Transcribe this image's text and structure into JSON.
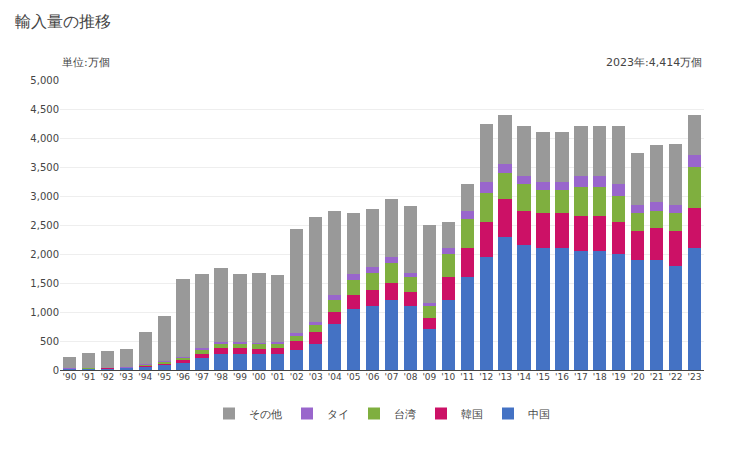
{
  "chart_data": {
    "type": "bar",
    "stacked": true,
    "title": "輸入量の推移",
    "subtitle": "単位:万個",
    "annotation": "2023年:4,414万個",
    "categories": [
      "'90",
      "'91",
      "'92",
      "'93",
      "'94",
      "'95",
      "'96",
      "'97",
      "'98",
      "'99",
      "'00",
      "'01",
      "'02",
      "'03",
      "'04",
      "'05",
      "'06",
      "'07",
      "'08",
      "'09",
      "'10",
      "'11",
      "'12",
      "'13",
      "'14",
      "'15",
      "'16",
      "'17",
      "'18",
      "'19",
      "'20",
      "'21",
      "'22",
      "'23"
    ],
    "series": [
      {
        "name": "中国",
        "color": "#4472c4",
        "values": [
          20,
          25,
          30,
          35,
          60,
          90,
          120,
          200,
          280,
          280,
          270,
          280,
          350,
          450,
          800,
          1050,
          1100,
          1200,
          1100,
          700,
          1200,
          1600,
          1950,
          2300,
          2150,
          2100,
          2100,
          2050,
          2050,
          2000,
          1900,
          1900,
          1800,
          2100
        ]
      },
      {
        "name": "韓国",
        "color": "#cc1166",
        "values": [
          5,
          5,
          5,
          5,
          20,
          30,
          50,
          80,
          100,
          100,
          100,
          100,
          150,
          200,
          200,
          250,
          280,
          300,
          250,
          200,
          400,
          500,
          600,
          650,
          600,
          600,
          600,
          600,
          600,
          550,
          500,
          550,
          600,
          700
        ]
      },
      {
        "name": "台湾",
        "color": "#7faf3f",
        "values": [
          5,
          5,
          5,
          5,
          10,
          20,
          40,
          80,
          80,
          80,
          80,
          80,
          100,
          130,
          200,
          250,
          300,
          350,
          250,
          200,
          400,
          500,
          500,
          450,
          450,
          400,
          400,
          500,
          500,
          450,
          300,
          300,
          300,
          700
        ]
      },
      {
        "name": "タイ",
        "color": "#9966cc",
        "values": [
          2,
          2,
          2,
          2,
          5,
          10,
          15,
          20,
          20,
          20,
          20,
          20,
          30,
          50,
          100,
          100,
          100,
          100,
          80,
          50,
          100,
          150,
          200,
          150,
          150,
          150,
          150,
          200,
          200,
          200,
          150,
          150,
          150,
          200
        ]
      },
      {
        "name": "その他",
        "color": "#999999",
        "values": [
          200,
          250,
          280,
          310,
          560,
          780,
          1350,
          1280,
          1280,
          1180,
          1200,
          1150,
          1800,
          1800,
          1450,
          1050,
          1000,
          1000,
          1150,
          1350,
          450,
          450,
          1000,
          850,
          850,
          850,
          850,
          850,
          850,
          1000,
          900,
          980,
          1050,
          700
        ]
      }
    ],
    "ylim": [
      0,
      5000
    ],
    "yticks": [
      0,
      500,
      {
        "value": 1000,
        "label": "1,000"
      },
      {
        "value": 1500,
        "label": "1,500"
      },
      {
        "value": 2000,
        "label": "2,000"
      },
      {
        "value": 2500,
        "label": "2,500"
      },
      {
        "value": 3000,
        "label": "3,000"
      },
      {
        "value": 3500,
        "label": "3,500"
      },
      {
        "value": 4000,
        "label": "4,000"
      },
      {
        "value": 4500,
        "label": "4,500"
      },
      {
        "value": 5000,
        "label": "5,000"
      }
    ],
    "grid": true,
    "legend": "bottom"
  }
}
